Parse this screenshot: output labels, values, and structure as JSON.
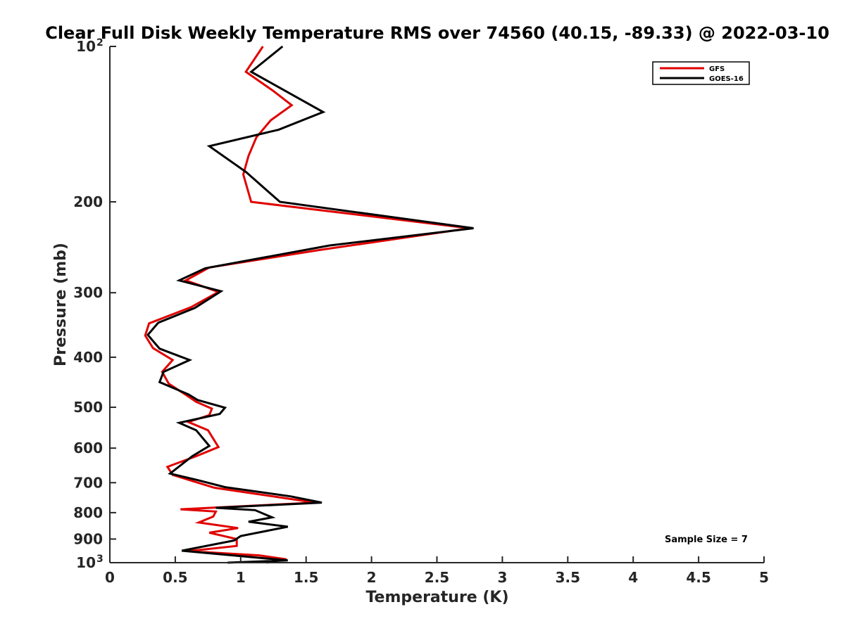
{
  "chart_data": {
    "type": "line",
    "title": "Clear Full Disk Weekly Temperature RMS over 74560 (40.15, -89.33) @ 2022-03-10",
    "xlabel": "Temperature (K)",
    "ylabel": "Pressure (mb)",
    "xlim": [
      0,
      5
    ],
    "ylim": [
      100,
      1000
    ],
    "y_scale": "log",
    "y_reversed": true,
    "grid": false,
    "legend_position": "top-right",
    "x_ticks": [
      {
        "value": 0,
        "label": "0"
      },
      {
        "value": 0.5,
        "label": "0.5"
      },
      {
        "value": 1,
        "label": "1"
      },
      {
        "value": 1.5,
        "label": "1.5"
      },
      {
        "value": 2,
        "label": "2"
      },
      {
        "value": 2.5,
        "label": "2.5"
      },
      {
        "value": 3,
        "label": "3"
      },
      {
        "value": 3.5,
        "label": "3.5"
      },
      {
        "value": 4,
        "label": "4"
      },
      {
        "value": 4.5,
        "label": "4.5"
      },
      {
        "value": 5,
        "label": "5"
      }
    ],
    "y_ticks": [
      {
        "value": 100,
        "label": "10",
        "sup": "2"
      },
      {
        "value": 200,
        "label": "200"
      },
      {
        "value": 300,
        "label": "300"
      },
      {
        "value": 400,
        "label": "400"
      },
      {
        "value": 500,
        "label": "500"
      },
      {
        "value": 600,
        "label": "600"
      },
      {
        "value": 700,
        "label": "700"
      },
      {
        "value": 800,
        "label": "800"
      },
      {
        "value": 900,
        "label": "900"
      },
      {
        "value": 1000,
        "label": "10",
        "sup": "3"
      }
    ],
    "annotation": "Sample Size = 7",
    "series": [
      {
        "name": "GFS",
        "color": "#e00000",
        "points": [
          [
            1.17,
            100
          ],
          [
            1.04,
            112
          ],
          [
            1.25,
            122
          ],
          [
            1.39,
            130
          ],
          [
            1.23,
            139
          ],
          [
            1.12,
            150
          ],
          [
            1.06,
            163
          ],
          [
            1.02,
            177
          ],
          [
            1.08,
            200
          ],
          [
            2.75,
            225
          ],
          [
            1.6,
            248
          ],
          [
            0.76,
            268
          ],
          [
            0.58,
            284
          ],
          [
            0.83,
            299
          ],
          [
            0.62,
            320
          ],
          [
            0.3,
            344
          ],
          [
            0.27,
            363
          ],
          [
            0.33,
            384
          ],
          [
            0.48,
            405
          ],
          [
            0.4,
            427
          ],
          [
            0.45,
            450
          ],
          [
            0.58,
            473
          ],
          [
            0.66,
            488
          ],
          [
            0.78,
            503
          ],
          [
            0.76,
            518
          ],
          [
            0.6,
            534
          ],
          [
            0.75,
            554
          ],
          [
            0.83,
            597
          ],
          [
            0.66,
            622
          ],
          [
            0.44,
            652
          ],
          [
            0.48,
            676
          ],
          [
            0.8,
            716
          ],
          [
            1.57,
            765
          ],
          [
            0.54,
            788
          ],
          [
            0.81,
            796
          ],
          [
            0.79,
            814
          ],
          [
            0.68,
            836
          ],
          [
            0.98,
            857
          ],
          [
            0.76,
            875
          ],
          [
            0.97,
            900
          ],
          [
            0.97,
            928
          ],
          [
            0.6,
            950
          ],
          [
            1.14,
            968
          ],
          [
            1.35,
            985
          ],
          [
            1.2,
            1000
          ]
        ]
      },
      {
        "name": "GOES-16",
        "color": "#000000",
        "points": [
          [
            1.32,
            100
          ],
          [
            1.08,
            112
          ],
          [
            1.63,
            134
          ],
          [
            1.29,
            145
          ],
          [
            0.76,
            156
          ],
          [
            1.04,
            175
          ],
          [
            1.3,
            200
          ],
          [
            2.78,
            225
          ],
          [
            1.68,
            243
          ],
          [
            0.73,
            269
          ],
          [
            0.53,
            284
          ],
          [
            0.85,
            298
          ],
          [
            0.65,
            321
          ],
          [
            0.37,
            343
          ],
          [
            0.29,
            362
          ],
          [
            0.38,
            385
          ],
          [
            0.61,
            405
          ],
          [
            0.41,
            427
          ],
          [
            0.38,
            447
          ],
          [
            0.6,
            472
          ],
          [
            0.67,
            484
          ],
          [
            0.88,
            501
          ],
          [
            0.84,
            515
          ],
          [
            0.53,
            536
          ],
          [
            0.66,
            554
          ],
          [
            0.76,
            594
          ],
          [
            0.63,
            622
          ],
          [
            0.46,
            672
          ],
          [
            0.67,
            692
          ],
          [
            0.88,
            714
          ],
          [
            1.38,
            744
          ],
          [
            1.62,
            765
          ],
          [
            0.81,
            783
          ],
          [
            1.11,
            791
          ],
          [
            1.24,
            817
          ],
          [
            1.06,
            833
          ],
          [
            1.36,
            852
          ],
          [
            1.0,
            888
          ],
          [
            0.95,
            906
          ],
          [
            0.55,
            948
          ],
          [
            1.36,
            990
          ],
          [
            0.9,
            1000
          ]
        ]
      }
    ]
  }
}
